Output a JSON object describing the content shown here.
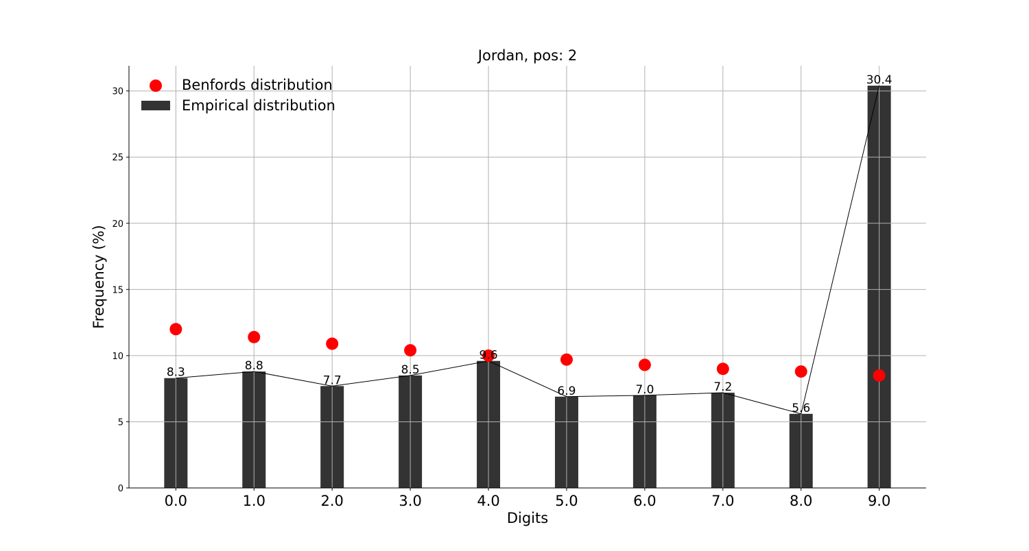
{
  "chart_data": {
    "type": "bar",
    "title": "Jordan, pos: 2",
    "xlabel": "Digits",
    "ylabel": "Frequency (%)",
    "categories": [
      "0.0",
      "1.0",
      "2.0",
      "3.0",
      "4.0",
      "5.0",
      "6.0",
      "7.0",
      "8.0",
      "9.0"
    ],
    "x": [
      0,
      1,
      2,
      3,
      4,
      5,
      6,
      7,
      8,
      9
    ],
    "xlim": [
      -0.6,
      9.6
    ],
    "ylim": [
      0,
      31.9
    ],
    "yticks": [
      "0",
      "5",
      "10",
      "15",
      "20",
      "25",
      "30"
    ],
    "grid": true,
    "legend_position": "top-left",
    "series": [
      {
        "name": "Empirical distribution",
        "type": "bar",
        "color": "#333333",
        "values": [
          8.3,
          8.8,
          7.7,
          8.5,
          9.6,
          6.9,
          7.0,
          7.2,
          5.6,
          30.4
        ],
        "labels": [
          "8.3",
          "8.8",
          "7.7",
          "8.5",
          "9.6",
          "6.9",
          "7.0",
          "7.2",
          "5.6",
          "30.4"
        ],
        "connecting_line": true
      },
      {
        "name": "Benfords distribution",
        "type": "scatter",
        "color": "#ff0000",
        "values": [
          12.0,
          11.4,
          10.9,
          10.4,
          10.0,
          9.7,
          9.3,
          9.0,
          8.8,
          8.5
        ]
      }
    ]
  }
}
